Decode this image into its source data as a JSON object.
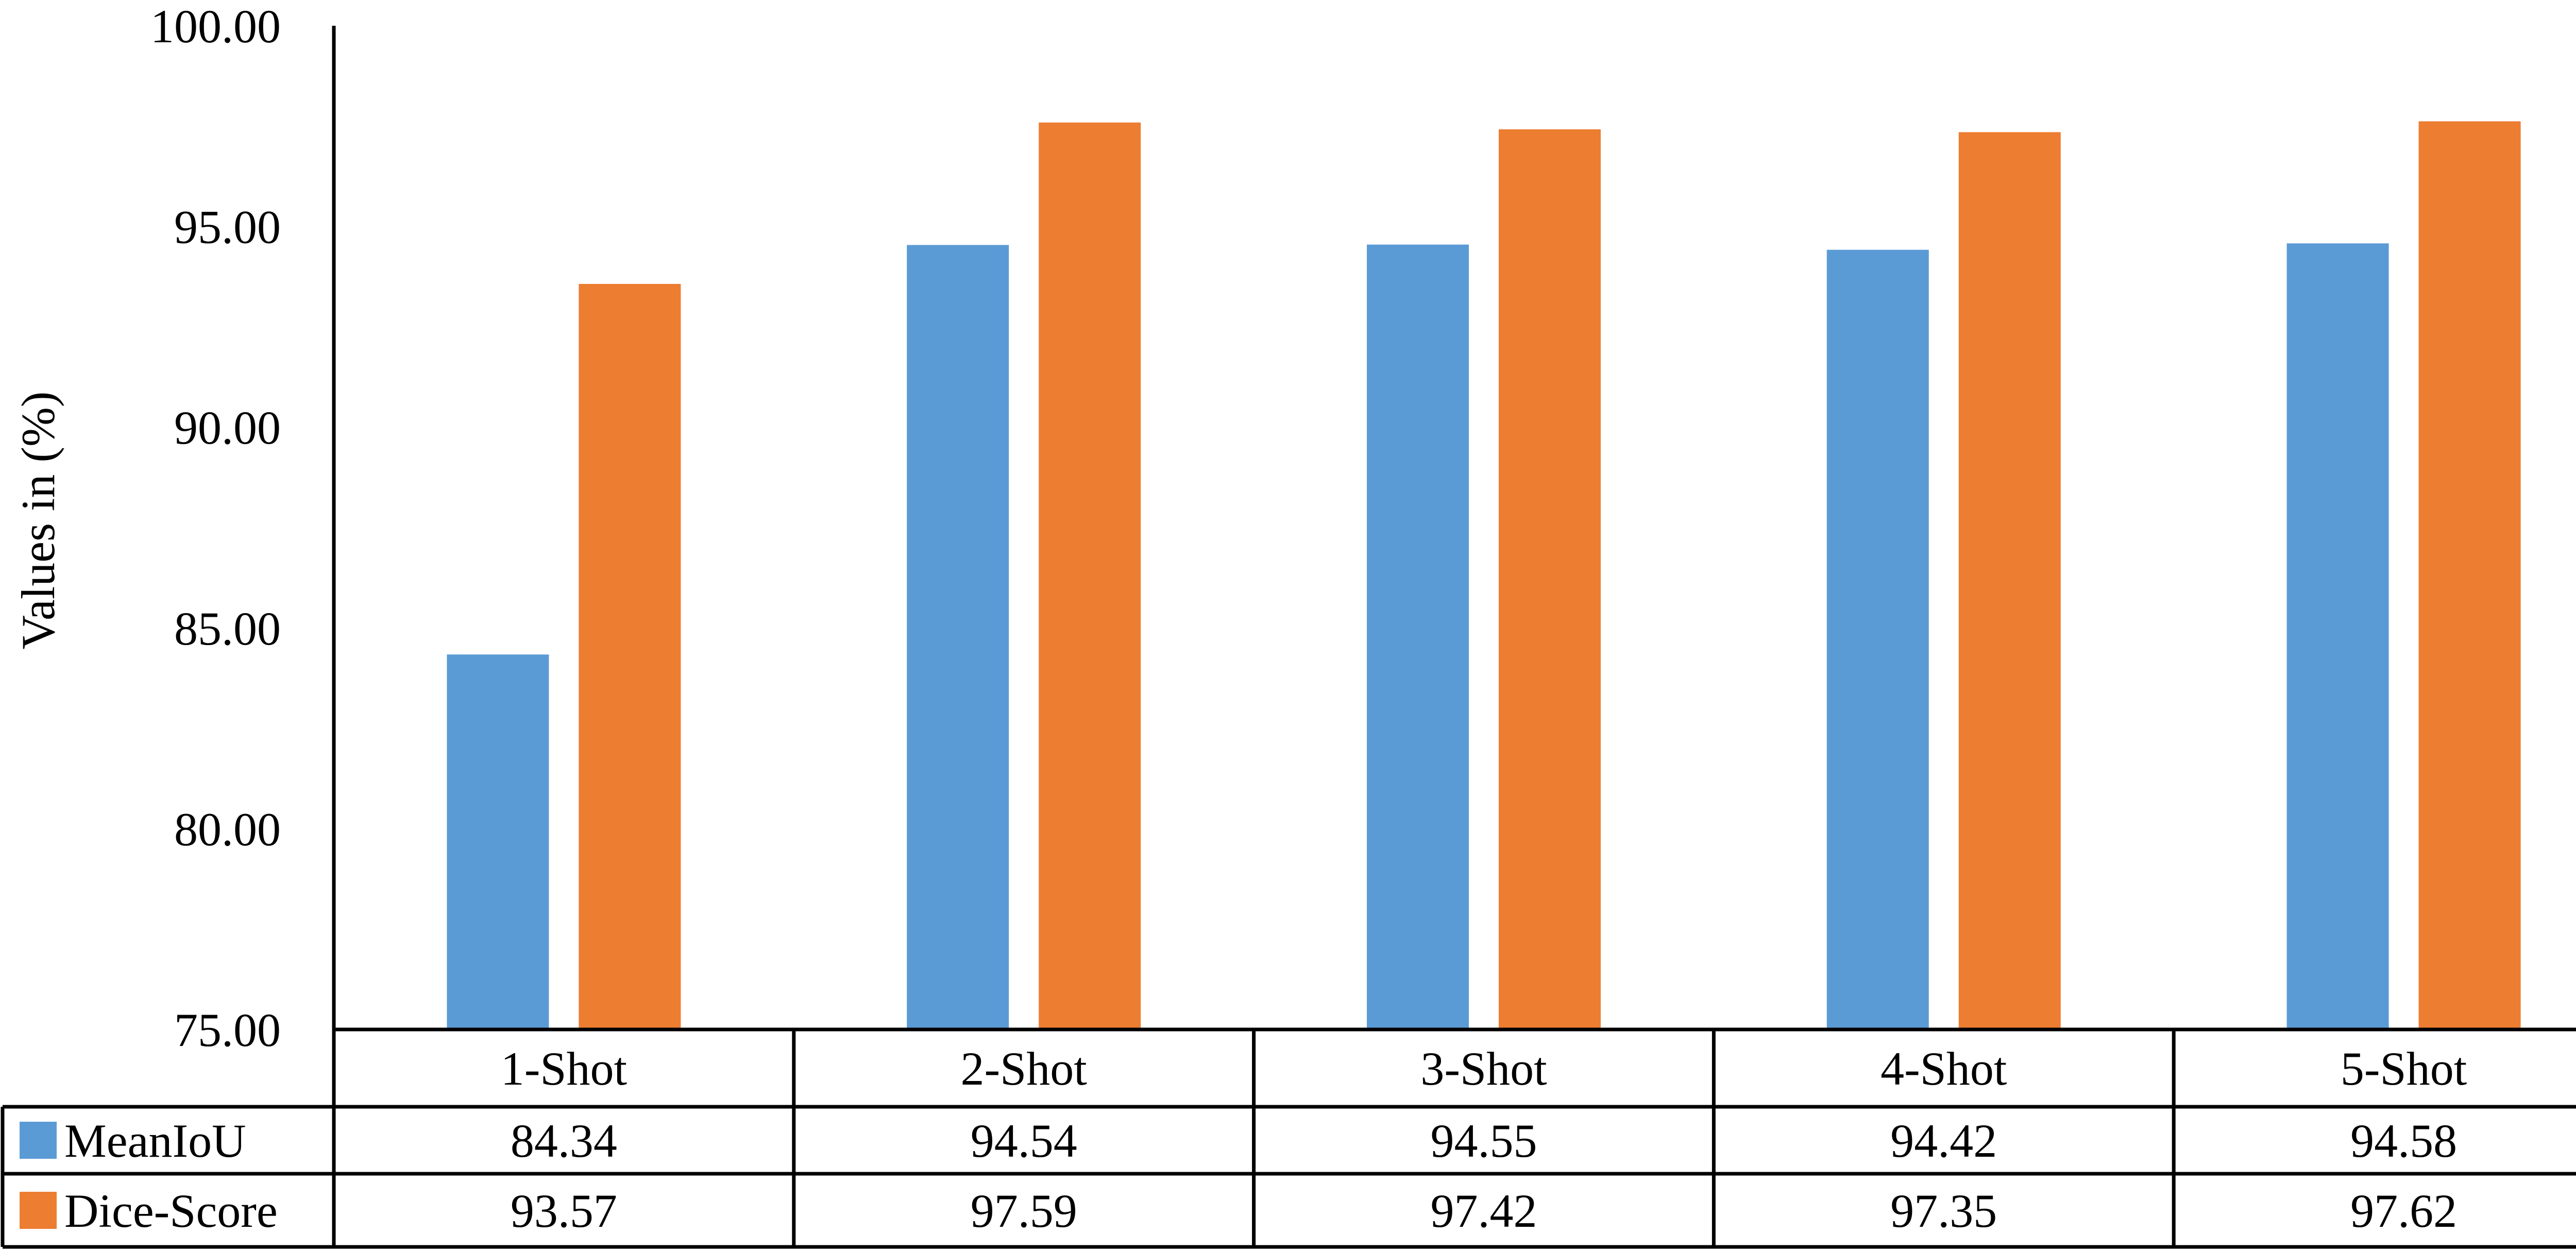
{
  "chart_data": {
    "type": "bar",
    "categories": [
      "1-Shot",
      "2-Shot",
      "3-Shot",
      "4-Shot",
      "5-Shot"
    ],
    "series": [
      {
        "name": "MeanIoU",
        "values": [
          84.34,
          94.54,
          94.55,
          94.42,
          94.58
        ],
        "color": "#5B9BD5"
      },
      {
        "name": "Dice-Score",
        "values": [
          93.57,
          97.59,
          97.42,
          97.35,
          97.62
        ],
        "color": "#ED7D31"
      }
    ],
    "ylabel": "Values in (%)",
    "ylim": [
      75,
      100
    ],
    "yticks": [
      "75.00",
      "80.00",
      "85.00",
      "90.00",
      "95.00",
      "100.00"
    ],
    "grid": false,
    "legend": "data-table-left",
    "data_table": true
  }
}
